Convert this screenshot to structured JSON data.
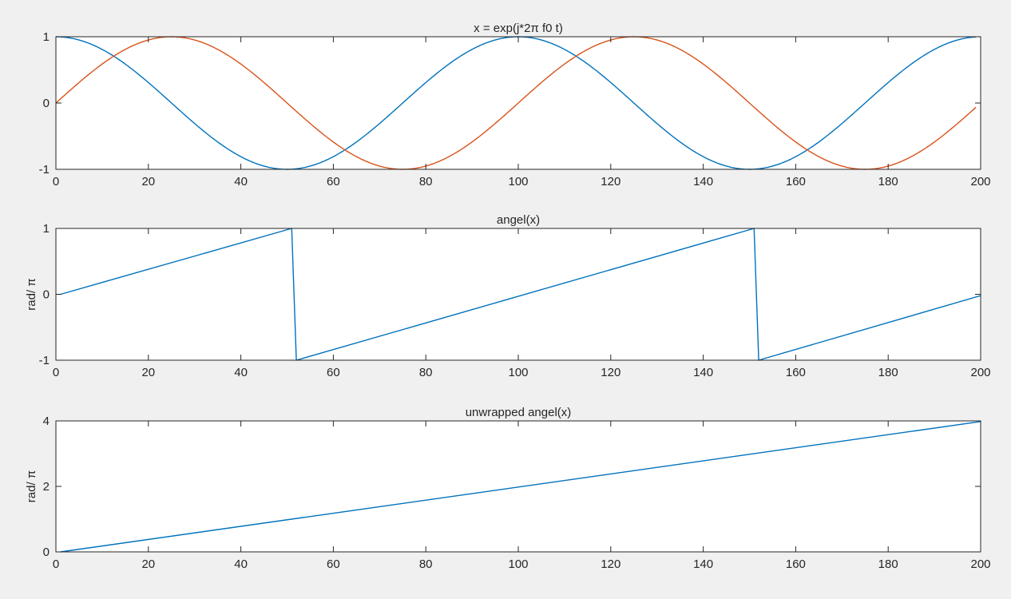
{
  "figure": {
    "background": "#f0f0f0"
  },
  "chart_data": [
    {
      "type": "line",
      "title": "x = exp(j*2π f0 t)",
      "xlabel": "",
      "ylabel": "",
      "xlim": [
        0,
        200
      ],
      "ylim": [
        -1,
        1
      ],
      "xticks": [
        0,
        20,
        40,
        60,
        80,
        100,
        120,
        140,
        160,
        180,
        200
      ],
      "xtick_labels": [
        "0",
        "20",
        "40",
        "60",
        "80",
        "100",
        "120",
        "140",
        "160",
        "180",
        "200"
      ],
      "yticks": [
        -1,
        0,
        1
      ],
      "ytick_labels": [
        "-1",
        "0",
        "1"
      ],
      "grid": false,
      "series": [
        {
          "color": "#0072bd",
          "x": [
            0,
            12.5,
            25,
            37.5,
            50,
            62.5,
            75,
            87.5,
            100,
            112.5,
            125,
            137.5,
            150,
            162.5,
            175,
            187.5,
            199
          ],
          "y": [
            1,
            0.707,
            0,
            -0.707,
            -1,
            -0.707,
            0,
            0.707,
            1,
            0.707,
            0,
            -0.707,
            -1,
            -0.707,
            0,
            0.707,
            0.998
          ]
        },
        {
          "color": "#d95319",
          "x": [
            0,
            12.5,
            25,
            37.5,
            50,
            62.5,
            75,
            87.5,
            100,
            112.5,
            125,
            137.5,
            150,
            162.5,
            175,
            187.5,
            199
          ],
          "y": [
            0,
            0.707,
            1,
            0.707,
            0,
            -0.707,
            -1,
            -0.707,
            0,
            0.707,
            1,
            0.707,
            0,
            -0.707,
            -1,
            -0.707,
            -0.063
          ]
        }
      ]
    },
    {
      "type": "line",
      "title": "angel(x)",
      "xlabel": "",
      "ylabel": "rad/ π",
      "xlim": [
        0,
        200
      ],
      "ylim": [
        -1,
        1
      ],
      "xticks": [
        0,
        20,
        40,
        60,
        80,
        100,
        120,
        140,
        160,
        180,
        200
      ],
      "xtick_labels": [
        "0",
        "20",
        "40",
        "60",
        "80",
        "100",
        "120",
        "140",
        "160",
        "180",
        "200"
      ],
      "yticks": [
        -1,
        0,
        1
      ],
      "ytick_labels": [
        "-1",
        "0",
        "1"
      ],
      "grid": false,
      "series": [
        {
          "color": "#0072bd",
          "x": [
            1,
            51,
            52,
            151,
            152,
            200
          ],
          "y": [
            0,
            1,
            -1,
            1,
            -1,
            -0.02
          ]
        }
      ]
    },
    {
      "type": "line",
      "title": "unwrapped angel(x)",
      "xlabel": "",
      "ylabel": "rad/ π",
      "xlim": [
        0,
        200
      ],
      "ylim": [
        0,
        4
      ],
      "xticks": [
        0,
        20,
        40,
        60,
        80,
        100,
        120,
        140,
        160,
        180,
        200
      ],
      "xtick_labels": [
        "0",
        "20",
        "40",
        "60",
        "80",
        "100",
        "120",
        "140",
        "160",
        "180",
        "200"
      ],
      "yticks": [
        0,
        2,
        4
      ],
      "ytick_labels": [
        "0",
        "2",
        "4"
      ],
      "grid": false,
      "series": [
        {
          "color": "#0072bd",
          "x": [
            1,
            200
          ],
          "y": [
            0,
            3.98
          ]
        }
      ]
    }
  ]
}
